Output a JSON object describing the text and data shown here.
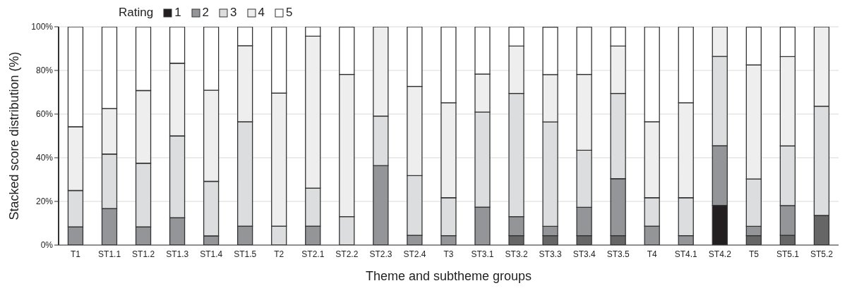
{
  "chart_data": {
    "type": "bar",
    "stacked": true,
    "legend_title": "Rating",
    "legend": "top",
    "xlabel": "Theme and subtheme groups",
    "ylabel": "Stacked score distribution (%)",
    "ylim": [
      0,
      100
    ],
    "yticks": [
      {
        "value": 0,
        "label": "0%"
      },
      {
        "value": 20,
        "label": "20%"
      },
      {
        "value": 40,
        "label": "40%"
      },
      {
        "value": 60,
        "label": "60%"
      },
      {
        "value": 80,
        "label": "80%"
      },
      {
        "value": 100,
        "label": "100%"
      }
    ],
    "grid": "y",
    "categories": [
      "T1",
      "ST1.1",
      "ST1.2",
      "ST1.3",
      "ST1.4",
      "ST1.5",
      "T2",
      "ST2.1",
      "ST2.2",
      "ST2.3",
      "ST2.4",
      "T3",
      "ST3.1",
      "ST3.2",
      "ST3.3",
      "ST3.4",
      "ST3.5",
      "T4",
      "ST4.1",
      "ST4.2",
      "T5",
      "ST5.1",
      "ST5.2"
    ],
    "series": [
      {
        "name": "1",
        "color": "#231f20",
        "colors": [
          "#666666",
          "#666666",
          "#666666",
          "#666666",
          "#666666",
          "#666666",
          "#666666",
          "#666666",
          "#666666",
          "#666666",
          "#666666",
          "#666666",
          "#666666",
          "#666666",
          "#666666",
          "#666666",
          "#666666",
          "#666666",
          "#666666",
          "#231f20",
          "#666666",
          "#666666",
          "#666666"
        ],
        "values": [
          0,
          0,
          0,
          0,
          0,
          0,
          0,
          0,
          0,
          0,
          0,
          0,
          0,
          4.3,
          4.3,
          4.3,
          4.3,
          0,
          0,
          18.2,
          4.3,
          4.5,
          13.6
        ]
      },
      {
        "name": "2",
        "color": "#939598",
        "values": [
          8.3,
          16.7,
          8.3,
          12.5,
          4.2,
          8.7,
          0,
          8.7,
          0,
          36.4,
          4.5,
          4.3,
          17.4,
          8.7,
          4.3,
          13.0,
          26.1,
          8.7,
          4.3,
          27.3,
          4.3,
          13.6,
          0
        ]
      },
      {
        "name": "3",
        "color": "#dcddde",
        "values": [
          16.7,
          25,
          29.2,
          37.5,
          25,
          47.8,
          8.7,
          17.4,
          13.0,
          22.7,
          27.3,
          17.4,
          43.5,
          56.5,
          47.8,
          26.1,
          39.1,
          13.0,
          17.4,
          40.9,
          21.7,
          27.3,
          50
        ]
      },
      {
        "name": "4",
        "color": "#eeeeee",
        "values": [
          29.2,
          20.8,
          33.3,
          33.3,
          41.7,
          34.8,
          60.9,
          69.6,
          65.2,
          40.9,
          40.9,
          43.5,
          17.4,
          21.7,
          21.7,
          34.8,
          21.7,
          34.8,
          43.5,
          13.6,
          52.2,
          40.9,
          36.4
        ]
      },
      {
        "name": "5",
        "color": "#ffffff",
        "values": [
          45.8,
          37.5,
          29.2,
          16.7,
          29.2,
          8.7,
          30.4,
          4.3,
          21.7,
          0,
          27.3,
          34.8,
          21.7,
          8.7,
          21.7,
          21.7,
          8.7,
          43.5,
          34.8,
          0,
          17.4,
          13.6,
          0
        ]
      }
    ]
  }
}
